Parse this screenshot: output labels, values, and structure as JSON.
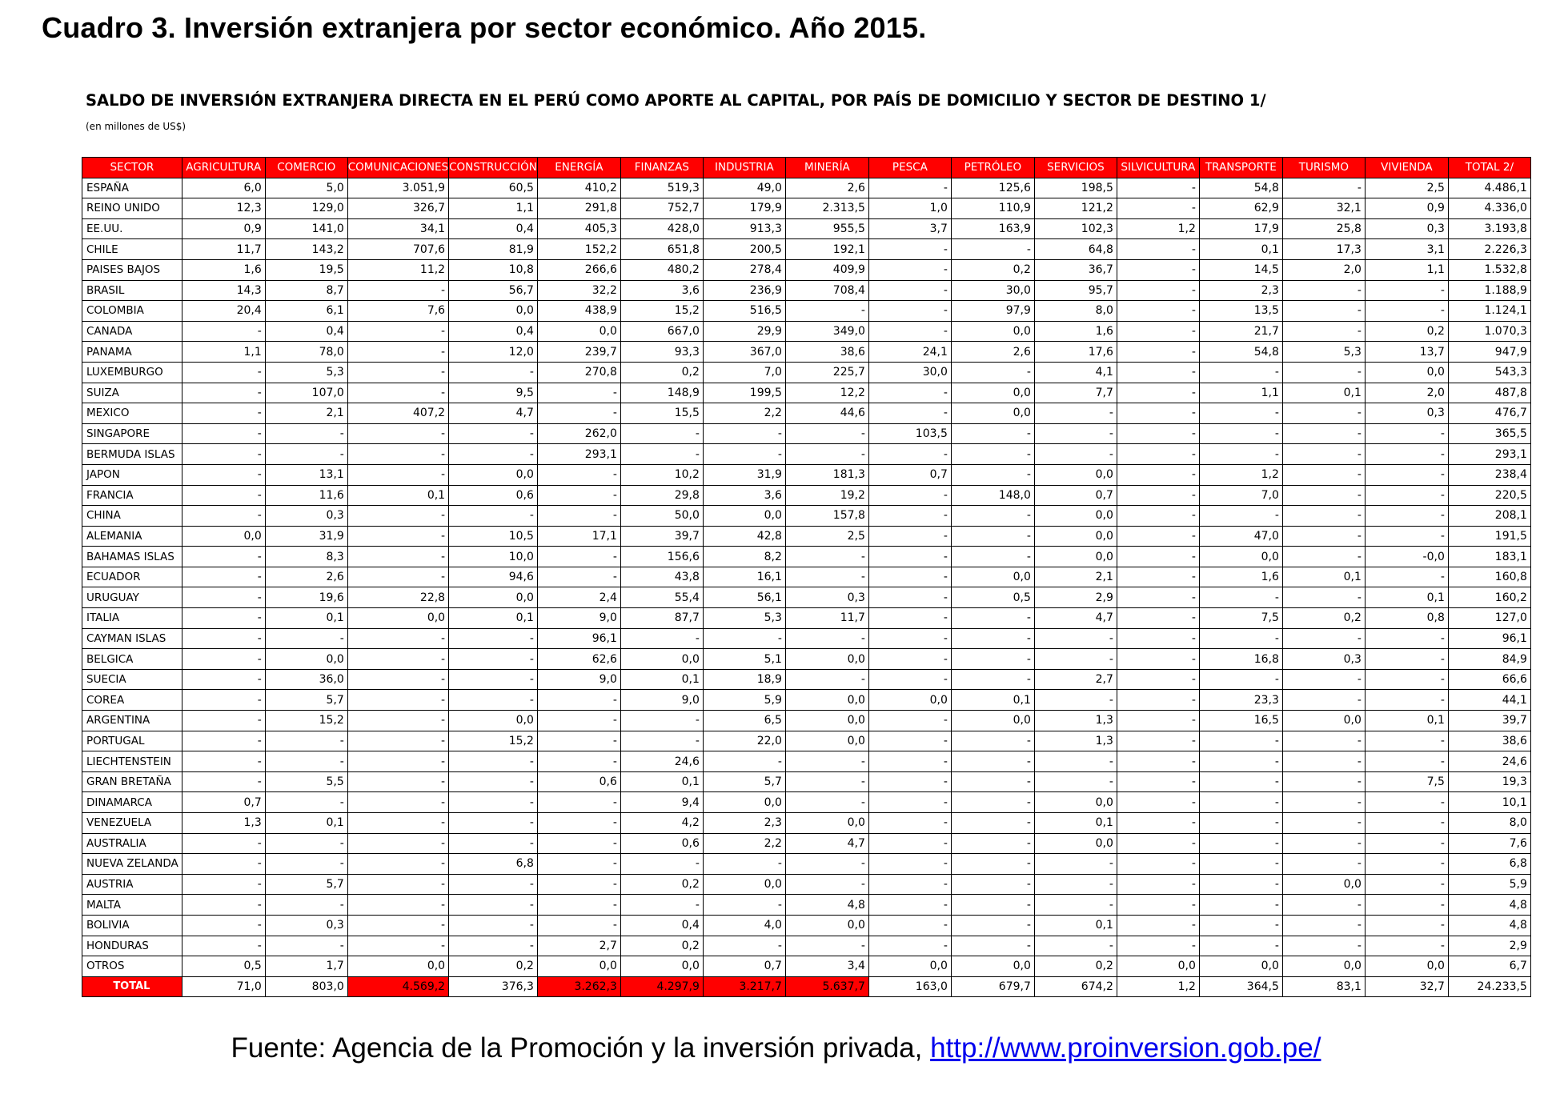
{
  "title": "Cuadro 3. Inversión extranjera por sector económico. Año 2015.",
  "table_title": "SALDO DE INVERSIÓN EXTRANJERA DIRECTA EN EL PERÚ COMO APORTE AL CAPITAL, POR PAÍS DE DOMICILIO Y SECTOR DE DESTINO 1/",
  "units": "(en millones de US$)",
  "colors": {
    "header_bg": "#ff0000",
    "header_text": "#ffffff",
    "highlight": "#ff0000",
    "link": "#0000ee"
  },
  "columns": [
    "SECTOR",
    "AGRICULTURA",
    "COMERCIO",
    "COMUNICACIONES",
    "CONSTRUCCIÓN",
    "ENERGÍA",
    "FINANZAS",
    "INDUSTRIA",
    "MINERÍA",
    "PESCA",
    "PETRÓLEO",
    "SERVICIOS",
    "SILVICULTURA",
    "TRANSPORTE",
    "TURISMO",
    "VIVIENDA",
    "TOTAL 2/"
  ],
  "rows": [
    {
      "country": "ESPAÑA",
      "values": [
        "6,0",
        "5,0",
        "3.051,9",
        "60,5",
        "410,2",
        "519,3",
        "49,0",
        "2,6",
        "-",
        "125,6",
        "198,5",
        "-",
        "54,8",
        "-",
        "2,5",
        "4.486,1"
      ]
    },
    {
      "country": "REINO UNIDO",
      "values": [
        "12,3",
        "129,0",
        "326,7",
        "1,1",
        "291,8",
        "752,7",
        "179,9",
        "2.313,5",
        "1,0",
        "110,9",
        "121,2",
        "-",
        "62,9",
        "32,1",
        "0,9",
        "4.336,0"
      ]
    },
    {
      "country": "EE.UU.",
      "values": [
        "0,9",
        "141,0",
        "34,1",
        "0,4",
        "405,3",
        "428,0",
        "913,3",
        "955,5",
        "3,7",
        "163,9",
        "102,3",
        "1,2",
        "17,9",
        "25,8",
        "0,3",
        "3.193,8"
      ]
    },
    {
      "country": "CHILE",
      "values": [
        "11,7",
        "143,2",
        "707,6",
        "81,9",
        "152,2",
        "651,8",
        "200,5",
        "192,1",
        "-",
        "-",
        "64,8",
        "-",
        "0,1",
        "17,3",
        "3,1",
        "2.226,3"
      ]
    },
    {
      "country": "PAISES BAJOS",
      "values": [
        "1,6",
        "19,5",
        "11,2",
        "10,8",
        "266,6",
        "480,2",
        "278,4",
        "409,9",
        "-",
        "0,2",
        "36,7",
        "-",
        "14,5",
        "2,0",
        "1,1",
        "1.532,8"
      ]
    },
    {
      "country": "BRASIL",
      "values": [
        "14,3",
        "8,7",
        "-",
        "56,7",
        "32,2",
        "3,6",
        "236,9",
        "708,4",
        "-",
        "30,0",
        "95,7",
        "-",
        "2,3",
        "-",
        "-",
        "1.188,9"
      ]
    },
    {
      "country": "COLOMBIA",
      "values": [
        "20,4",
        "6,1",
        "7,6",
        "0,0",
        "438,9",
        "15,2",
        "516,5",
        "-",
        "-",
        "97,9",
        "8,0",
        "-",
        "13,5",
        "-",
        "-",
        "1.124,1"
      ]
    },
    {
      "country": "CANADA",
      "values": [
        "-",
        "0,4",
        "-",
        "0,4",
        "0,0",
        "667,0",
        "29,9",
        "349,0",
        "-",
        "0,0",
        "1,6",
        "-",
        "21,7",
        "-",
        "0,2",
        "1.070,3"
      ]
    },
    {
      "country": "PANAMA",
      "values": [
        "1,1",
        "78,0",
        "-",
        "12,0",
        "239,7",
        "93,3",
        "367,0",
        "38,6",
        "24,1",
        "2,6",
        "17,6",
        "-",
        "54,8",
        "5,3",
        "13,7",
        "947,9"
      ]
    },
    {
      "country": "LUXEMBURGO",
      "values": [
        "-",
        "5,3",
        "-",
        "-",
        "270,8",
        "0,2",
        "7,0",
        "225,7",
        "30,0",
        "-",
        "4,1",
        "-",
        "-",
        "-",
        "0,0",
        "543,3"
      ]
    },
    {
      "country": "SUIZA",
      "values": [
        "-",
        "107,0",
        "-",
        "9,5",
        "-",
        "148,9",
        "199,5",
        "12,2",
        "-",
        "0,0",
        "7,7",
        "-",
        "1,1",
        "0,1",
        "2,0",
        "487,8"
      ]
    },
    {
      "country": "MEXICO",
      "values": [
        "-",
        "2,1",
        "407,2",
        "4,7",
        "-",
        "15,5",
        "2,2",
        "44,6",
        "-",
        "0,0",
        "-",
        "-",
        "-",
        "-",
        "0,3",
        "476,7"
      ]
    },
    {
      "country": "SINGAPORE",
      "values": [
        "-",
        "-",
        "-",
        "-",
        "262,0",
        "-",
        "-",
        "-",
        "103,5",
        "-",
        "-",
        "-",
        "-",
        "-",
        "-",
        "365,5"
      ]
    },
    {
      "country": "BERMUDA ISLAS",
      "values": [
        "-",
        "-",
        "-",
        "-",
        "293,1",
        "-",
        "-",
        "-",
        "-",
        "-",
        "-",
        "-",
        "-",
        "-",
        "-",
        "293,1"
      ]
    },
    {
      "country": "JAPON",
      "values": [
        "-",
        "13,1",
        "-",
        "0,0",
        "-",
        "10,2",
        "31,9",
        "181,3",
        "0,7",
        "-",
        "0,0",
        "-",
        "1,2",
        "-",
        "-",
        "238,4"
      ]
    },
    {
      "country": "FRANCIA",
      "values": [
        "-",
        "11,6",
        "0,1",
        "0,6",
        "-",
        "29,8",
        "3,6",
        "19,2",
        "-",
        "148,0",
        "0,7",
        "-",
        "7,0",
        "-",
        "-",
        "220,5"
      ]
    },
    {
      "country": "CHINA",
      "values": [
        "-",
        "0,3",
        "-",
        "-",
        "-",
        "50,0",
        "0,0",
        "157,8",
        "-",
        "-",
        "0,0",
        "-",
        "-",
        "-",
        "-",
        "208,1"
      ]
    },
    {
      "country": "ALEMANIA",
      "values": [
        "0,0",
        "31,9",
        "-",
        "10,5",
        "17,1",
        "39,7",
        "42,8",
        "2,5",
        "-",
        "-",
        "0,0",
        "-",
        "47,0",
        "-",
        "-",
        "191,5"
      ]
    },
    {
      "country": "BAHAMAS ISLAS",
      "values": [
        "-",
        "8,3",
        "-",
        "10,0",
        "-",
        "156,6",
        "8,2",
        "-",
        "-",
        "-",
        "0,0",
        "-",
        "0,0",
        "-",
        "-0,0",
        "183,1"
      ]
    },
    {
      "country": "ECUADOR",
      "values": [
        "-",
        "2,6",
        "-",
        "94,6",
        "-",
        "43,8",
        "16,1",
        "-",
        "-",
        "0,0",
        "2,1",
        "-",
        "1,6",
        "0,1",
        "-",
        "160,8"
      ]
    },
    {
      "country": "URUGUAY",
      "values": [
        "-",
        "19,6",
        "22,8",
        "0,0",
        "2,4",
        "55,4",
        "56,1",
        "0,3",
        "-",
        "0,5",
        "2,9",
        "-",
        "-",
        "-",
        "0,1",
        "160,2"
      ]
    },
    {
      "country": "ITALIA",
      "values": [
        "-",
        "0,1",
        "0,0",
        "0,1",
        "9,0",
        "87,7",
        "5,3",
        "11,7",
        "-",
        "-",
        "4,7",
        "-",
        "7,5",
        "0,2",
        "0,8",
        "127,0"
      ]
    },
    {
      "country": "CAYMAN ISLAS",
      "values": [
        "-",
        "-",
        "-",
        "-",
        "96,1",
        "-",
        "-",
        "-",
        "-",
        "-",
        "-",
        "-",
        "-",
        "-",
        "-",
        "96,1"
      ]
    },
    {
      "country": "BELGICA",
      "values": [
        "-",
        "0,0",
        "-",
        "-",
        "62,6",
        "0,0",
        "5,1",
        "0,0",
        "-",
        "-",
        "-",
        "-",
        "16,8",
        "0,3",
        "-",
        "84,9"
      ]
    },
    {
      "country": "SUECIA",
      "values": [
        "-",
        "36,0",
        "-",
        "-",
        "9,0",
        "0,1",
        "18,9",
        "-",
        "-",
        "-",
        "2,7",
        "-",
        "-",
        "-",
        "-",
        "66,6"
      ]
    },
    {
      "country": "COREA",
      "values": [
        "-",
        "5,7",
        "-",
        "-",
        "-",
        "9,0",
        "5,9",
        "0,0",
        "0,0",
        "0,1",
        "-",
        "-",
        "23,3",
        "-",
        "-",
        "44,1"
      ]
    },
    {
      "country": "ARGENTINA",
      "values": [
        "-",
        "15,2",
        "-",
        "0,0",
        "-",
        "-",
        "6,5",
        "0,0",
        "-",
        "0,0",
        "1,3",
        "-",
        "16,5",
        "0,0",
        "0,1",
        "39,7"
      ]
    },
    {
      "country": "PORTUGAL",
      "values": [
        "-",
        "-",
        "-",
        "15,2",
        "-",
        "-",
        "22,0",
        "0,0",
        "-",
        "-",
        "1,3",
        "-",
        "-",
        "-",
        "-",
        "38,6"
      ]
    },
    {
      "country": "LIECHTENSTEIN",
      "values": [
        "-",
        "-",
        "-",
        "-",
        "-",
        "24,6",
        "-",
        "-",
        "-",
        "-",
        "-",
        "-",
        "-",
        "-",
        "-",
        "24,6"
      ]
    },
    {
      "country": "GRAN BRETAÑA",
      "values": [
        "-",
        "5,5",
        "-",
        "-",
        "0,6",
        "0,1",
        "5,7",
        "-",
        "-",
        "-",
        "-",
        "-",
        "-",
        "-",
        "7,5",
        "19,3"
      ]
    },
    {
      "country": "DINAMARCA",
      "values": [
        "0,7",
        "-",
        "-",
        "-",
        "-",
        "9,4",
        "0,0",
        "-",
        "-",
        "-",
        "0,0",
        "-",
        "-",
        "-",
        "-",
        "10,1"
      ]
    },
    {
      "country": "VENEZUELA",
      "values": [
        "1,3",
        "0,1",
        "-",
        "-",
        "-",
        "4,2",
        "2,3",
        "0,0",
        "-",
        "-",
        "0,1",
        "-",
        "-",
        "-",
        "-",
        "8,0"
      ]
    },
    {
      "country": "AUSTRALIA",
      "values": [
        "-",
        "-",
        "-",
        "-",
        "-",
        "0,6",
        "2,2",
        "4,7",
        "-",
        "-",
        "0,0",
        "-",
        "-",
        "-",
        "-",
        "7,6"
      ]
    },
    {
      "country": "NUEVA ZELANDA",
      "values": [
        "-",
        "-",
        "-",
        "6,8",
        "-",
        "-",
        "-",
        "-",
        "-",
        "-",
        "-",
        "-",
        "-",
        "-",
        "-",
        "6,8"
      ]
    },
    {
      "country": "AUSTRIA",
      "values": [
        "-",
        "5,7",
        "-",
        "-",
        "-",
        "0,2",
        "0,0",
        "-",
        "-",
        "-",
        "-",
        "-",
        "-",
        "0,0",
        "-",
        "5,9"
      ]
    },
    {
      "country": "MALTA",
      "values": [
        "-",
        "-",
        "-",
        "-",
        "-",
        "-",
        "-",
        "4,8",
        "-",
        "-",
        "-",
        "-",
        "-",
        "-",
        "-",
        "4,8"
      ]
    },
    {
      "country": "BOLIVIA",
      "values": [
        "-",
        "0,3",
        "-",
        "-",
        "-",
        "0,4",
        "4,0",
        "0,0",
        "-",
        "-",
        "0,1",
        "-",
        "-",
        "-",
        "-",
        "4,8"
      ]
    },
    {
      "country": "HONDURAS",
      "values": [
        "-",
        "-",
        "-",
        "-",
        "2,7",
        "0,2",
        "-",
        "-",
        "-",
        "-",
        "-",
        "-",
        "-",
        "-",
        "-",
        "2,9"
      ]
    },
    {
      "country": "OTROS",
      "values": [
        "0,5",
        "1,7",
        "0,0",
        "0,2",
        "0,0",
        "0,0",
        "0,7",
        "3,4",
        "0,0",
        "0,0",
        "0,2",
        "0,0",
        "0,0",
        "0,0",
        "0,0",
        "6,7"
      ]
    }
  ],
  "total": {
    "label": "TOTAL",
    "values": [
      "71,0",
      "803,0",
      "4.569,2",
      "376,3",
      "3.262,3",
      "4.297,9",
      "3.217,7",
      "5.637,7",
      "163,0",
      "679,7",
      "674,2",
      "1,2",
      "364,5",
      "83,1",
      "32,7",
      "24.233,5"
    ],
    "highlighted": [
      false,
      false,
      true,
      false,
      true,
      true,
      true,
      true,
      false,
      false,
      false,
      false,
      false,
      false,
      false,
      false
    ]
  },
  "source": {
    "text": "Fuente: Agencia de la Promoción y la inversión privada, ",
    "link": "http://www.proinversion.gob.pe/"
  }
}
